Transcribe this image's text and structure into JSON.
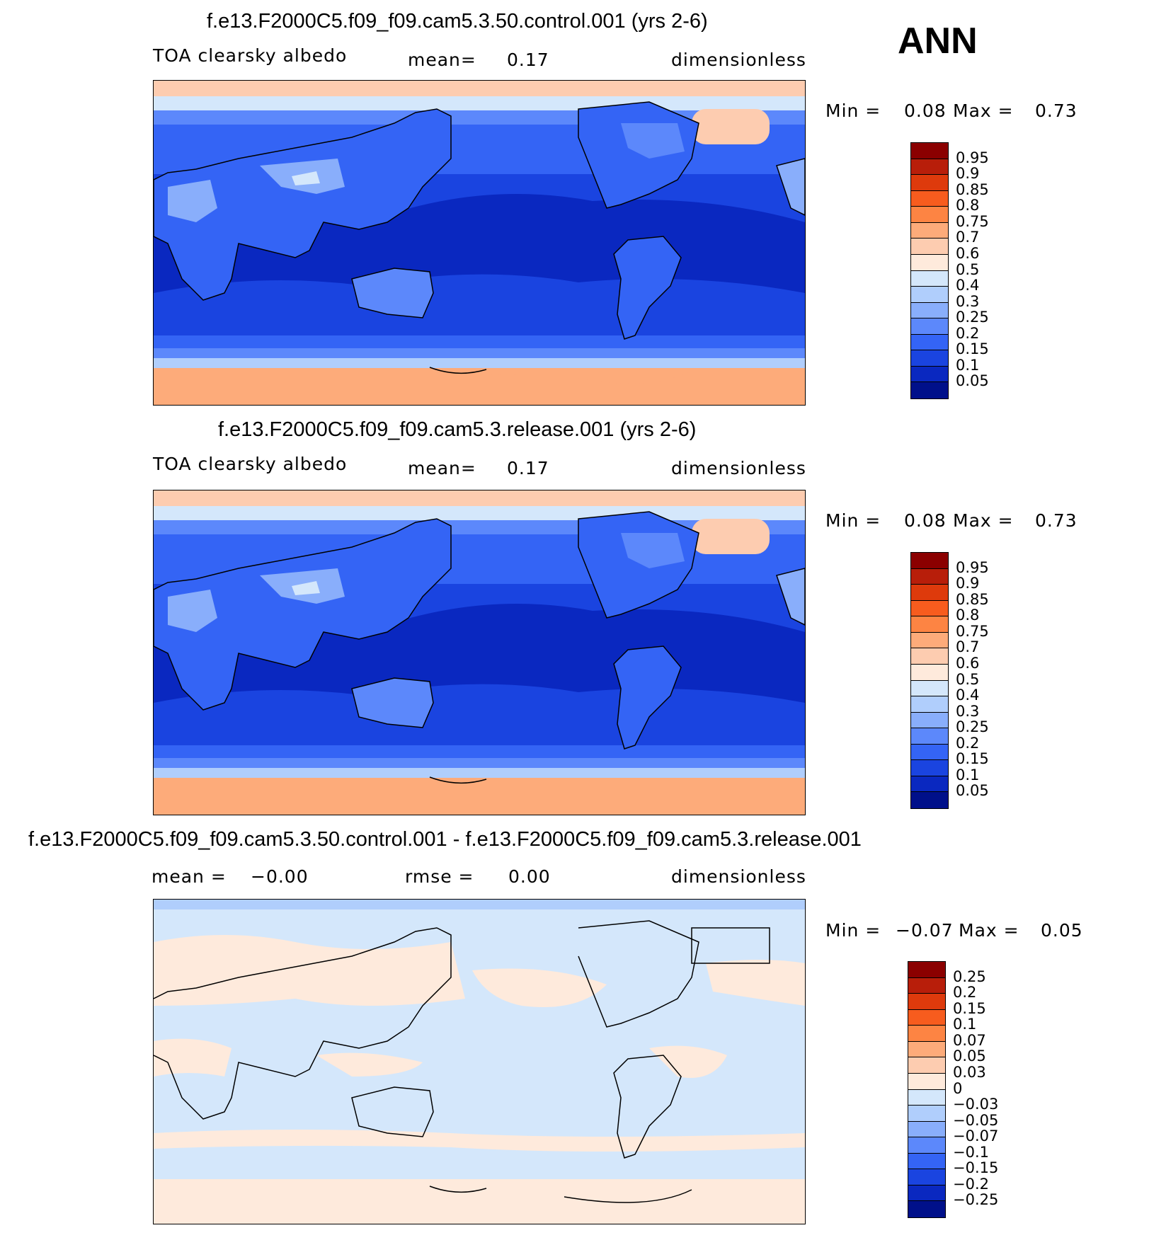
{
  "season": "ANN",
  "panels": [
    {
      "title": "f.e13.F2000C5.f09_f09.cam5.3.50.control.001 (yrs 2-6)",
      "variable": "TOA clearsky albedo",
      "stat_label": "mean=",
      "stat_value": "0.17",
      "stat2_label": "",
      "stat2_value": "",
      "units": "dimensionless",
      "min_label": "Min =",
      "min_value": "0.08",
      "max_label": "Max =",
      "max_value": "0.73"
    },
    {
      "title": "f.e13.F2000C5.f09_f09.cam5.3.release.001 (yrs 2-6)",
      "variable": "TOA clearsky albedo",
      "stat_label": "mean=",
      "stat_value": "0.17",
      "stat2_label": "",
      "stat2_value": "",
      "units": "dimensionless",
      "min_label": "Min =",
      "min_value": "0.08",
      "max_label": "Max =",
      "max_value": "0.73"
    },
    {
      "title": "f.e13.F2000C5.f09_f09.cam5.3.50.control.001 - f.e13.F2000C5.f09_f09.cam5.3.release.001",
      "variable": "",
      "stat_label": "mean =",
      "stat_value": "−0.00",
      "stat2_label": "rmse =",
      "stat2_value": "0.00",
      "units": "dimensionless",
      "min_label": "Min =",
      "min_value": "−0.07",
      "max_label": "Max =",
      "max_value": "0.05"
    }
  ],
  "colorbars": {
    "abs": {
      "labels": [
        "0.95",
        "0.9",
        "0.85",
        "0.8",
        "0.75",
        "0.7",
        "0.6",
        "0.5",
        "0.4",
        "0.3",
        "0.25",
        "0.2",
        "0.15",
        "0.1",
        "0.05"
      ],
      "colors": [
        "#8b0000",
        "#b81e0a",
        "#de3a0c",
        "#f75c1e",
        "#fd8443",
        "#fdab7a",
        "#fdccb0",
        "#feeadc",
        "#d4e7fb",
        "#b0cefc",
        "#89aefb",
        "#5c88fb",
        "#3464f5",
        "#1a44e0",
        "#0a28c0",
        "#00108a"
      ]
    },
    "diff": {
      "labels": [
        "0.25",
        "0.2",
        "0.15",
        "0.1",
        "0.07",
        "0.05",
        "0.03",
        "0",
        "−0.03",
        "−0.05",
        "−0.07",
        "−0.1",
        "−0.15",
        "−0.2",
        "−0.25"
      ],
      "colors": [
        "#8b0000",
        "#b81e0a",
        "#de3a0c",
        "#f75c1e",
        "#fd8443",
        "#fdab7a",
        "#fdccb0",
        "#feeadc",
        "#d4e7fb",
        "#b0cefc",
        "#89aefb",
        "#5c88fb",
        "#3464f5",
        "#1a44e0",
        "#0a28c0",
        "#00108a"
      ]
    }
  },
  "chart_data": [
    {
      "type": "heatmap",
      "title": "f.e13.F2000C5.f09_f09.cam5.3.50.control.001 (yrs 2-6)",
      "variable": "TOA clearsky albedo",
      "units": "dimensionless",
      "mean": 0.17,
      "min": 0.08,
      "max": 0.73,
      "contour_levels": [
        0.05,
        0.1,
        0.15,
        0.2,
        0.25,
        0.3,
        0.4,
        0.5,
        0.6,
        0.7,
        0.75,
        0.8,
        0.85,
        0.9,
        0.95
      ]
    },
    {
      "type": "heatmap",
      "title": "f.e13.F2000C5.f09_f09.cam5.3.release.001 (yrs 2-6)",
      "variable": "TOA clearsky albedo",
      "units": "dimensionless",
      "mean": 0.17,
      "min": 0.08,
      "max": 0.73,
      "contour_levels": [
        0.05,
        0.1,
        0.15,
        0.2,
        0.25,
        0.3,
        0.4,
        0.5,
        0.6,
        0.7,
        0.75,
        0.8,
        0.85,
        0.9,
        0.95
      ]
    },
    {
      "type": "heatmap",
      "title": "f.e13.F2000C5.f09_f09.cam5.3.50.control.001 - f.e13.F2000C5.f09_f09.cam5.3.release.001",
      "units": "dimensionless",
      "mean": -0.0,
      "rmse": 0.0,
      "min": -0.07,
      "max": 0.05,
      "contour_levels": [
        -0.25,
        -0.2,
        -0.15,
        -0.1,
        -0.07,
        -0.05,
        -0.03,
        0,
        0.03,
        0.05,
        0.07,
        0.1,
        0.15,
        0.2,
        0.25
      ]
    }
  ]
}
